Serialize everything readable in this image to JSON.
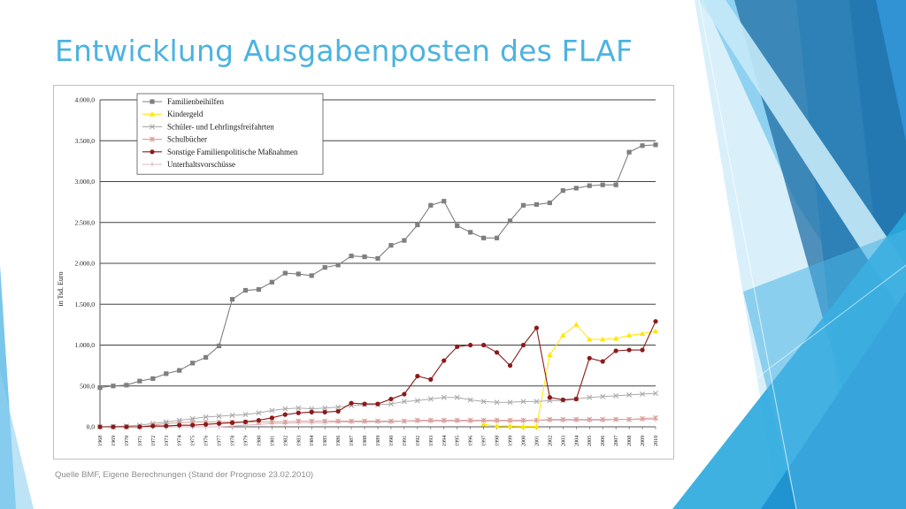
{
  "slide": {
    "title": "Entwicklung Ausgabenposten des FLAF",
    "source_note": "Quelle BMF, Eigene Berechnungen (Stand der Prognose 23.02.2010)"
  },
  "theme": {
    "title_color": "#4cb3e0",
    "deco_colors": [
      "#1f6fa6",
      "#2a8bd0",
      "#57b8e6",
      "#8fd1f0",
      "#c5e9f8"
    ]
  },
  "chart_data": {
    "type": "line",
    "ylabel": "in Tsd. Euro",
    "ylim": [
      0,
      4000
    ],
    "yticks": [
      0,
      500,
      1000,
      1500,
      2000,
      2500,
      3000,
      3500,
      4000
    ],
    "ytick_labels": [
      "0,0",
      "500,0",
      "1.000,0",
      "1.500,0",
      "2.000,0",
      "2.500,0",
      "3.000,0",
      "3.500,0",
      "4.000,0"
    ],
    "grid": "horizontal",
    "legend_position": "top-left",
    "x": [
      "1968",
      "1969",
      "1970",
      "1971",
      "1972",
      "1973",
      "1974",
      "1975",
      "1976",
      "1977",
      "1978",
      "1979",
      "1980",
      "1981",
      "1982",
      "1983",
      "1984",
      "1985",
      "1986",
      "1987",
      "1988",
      "1989",
      "1990",
      "1991",
      "1992",
      "1993",
      "1994",
      "1995",
      "1996",
      "1997",
      "1998",
      "1999",
      "2000",
      "2001",
      "2002",
      "2003",
      "2004",
      "2005",
      "2006",
      "2007",
      "2008",
      "2009",
      "2010"
    ],
    "series": [
      {
        "name": "Familienbeihilfen",
        "color": "#7f7f7f",
        "marker": "square",
        "values": [
          480,
          500,
          510,
          560,
          590,
          650,
          690,
          780,
          850,
          990,
          1560,
          1670,
          1680,
          1770,
          1880,
          1870,
          1850,
          1950,
          1980,
          2090,
          2080,
          2060,
          2220,
          2280,
          2470,
          2710,
          2760,
          2460,
          2380,
          2310,
          2310,
          2520,
          2710,
          2720,
          2740,
          2890,
          2920,
          2950,
          2960,
          2960,
          3360,
          3440,
          3450
        ]
      },
      {
        "name": "Kindergeld",
        "color": "#ffe600",
        "marker": "triangle",
        "values": [
          null,
          null,
          null,
          null,
          null,
          null,
          null,
          null,
          null,
          null,
          null,
          null,
          null,
          null,
          null,
          null,
          null,
          null,
          null,
          null,
          null,
          null,
          null,
          null,
          null,
          null,
          null,
          null,
          null,
          30,
          10,
          10,
          5,
          5,
          880,
          1120,
          1250,
          1070,
          1070,
          1080,
          1120,
          1140,
          1170
        ]
      },
      {
        "name": "Schüler- und Lehrlingsfreifahrten",
        "color": "#aaaaaa",
        "marker": "x",
        "values": [
          0,
          5,
          10,
          20,
          40,
          60,
          80,
          100,
          120,
          130,
          140,
          150,
          170,
          200,
          220,
          230,
          220,
          230,
          240,
          260,
          270,
          270,
          280,
          310,
          320,
          340,
          360,
          360,
          330,
          310,
          300,
          300,
          310,
          310,
          320,
          320,
          340,
          360,
          370,
          380,
          390,
          400,
          410
        ]
      },
      {
        "name": "Schulbücher",
        "color": "#d9a098",
        "marker": "asterisk",
        "values": [
          0,
          0,
          0,
          0,
          20,
          40,
          50,
          60,
          60,
          60,
          60,
          60,
          60,
          60,
          60,
          70,
          70,
          70,
          70,
          70,
          70,
          70,
          70,
          70,
          80,
          80,
          80,
          80,
          80,
          80,
          80,
          80,
          80,
          80,
          90,
          90,
          90,
          90,
          90,
          90,
          90,
          100,
          110
        ]
      },
      {
        "name": "Sonstige Familienpolitische Maßnahmen",
        "color": "#8b1a1a",
        "marker": "circle",
        "values": [
          0,
          0,
          0,
          0,
          10,
          10,
          20,
          20,
          30,
          40,
          50,
          60,
          80,
          110,
          150,
          170,
          180,
          180,
          190,
          290,
          280,
          280,
          340,
          400,
          620,
          580,
          810,
          980,
          1000,
          1000,
          910,
          750,
          1000,
          1210,
          360,
          330,
          340,
          840,
          800,
          930,
          940,
          940,
          1290
        ]
      },
      {
        "name": "Unterhaltsvorschüsse",
        "color": "#d8b8c8",
        "marker": "plus",
        "values": [
          0,
          0,
          0,
          0,
          0,
          0,
          0,
          0,
          0,
          0,
          10,
          20,
          30,
          40,
          40,
          50,
          50,
          50,
          60,
          60,
          60,
          60,
          60,
          70,
          70,
          70,
          70,
          70,
          70,
          70,
          70,
          70,
          70,
          80,
          80,
          80,
          80,
          80,
          80,
          90,
          90,
          90,
          90
        ]
      }
    ]
  }
}
